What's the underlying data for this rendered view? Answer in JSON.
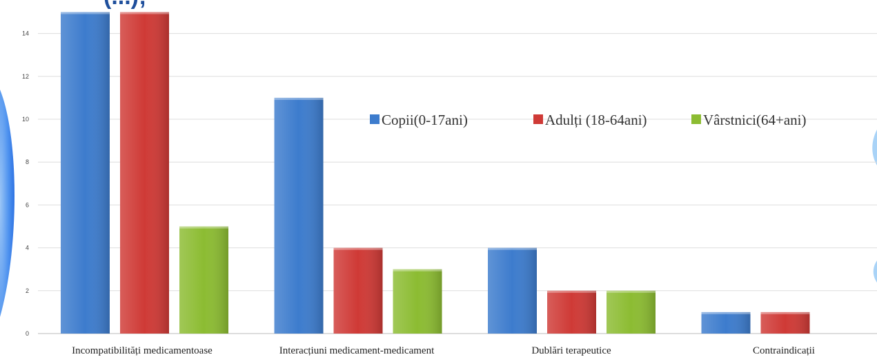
{
  "chart_data": {
    "type": "bar",
    "title_fragment": "(...);",
    "categories": [
      "Incompatibilități medicamentoase",
      "Interacțiuni medicament-medicament",
      "Dublări terapeutice",
      "Contraindicații"
    ],
    "series": [
      {
        "name": "Copii(0-17ani)",
        "color": "#3d7ccd",
        "values": [
          15,
          11,
          4,
          1
        ]
      },
      {
        "name": "Adulți (18-64ani)",
        "color": "#cf3a36",
        "values": [
          15,
          4,
          2,
          1
        ]
      },
      {
        "name": "Vârstnici(64+ani)",
        "color": "#8cbc32",
        "values": [
          5,
          3,
          2,
          0
        ]
      }
    ],
    "y_ticks": [
      0,
      2,
      4,
      6,
      8,
      10,
      12,
      14
    ],
    "ylim": [
      0,
      15
    ],
    "grid": true,
    "legend_position": "right"
  }
}
